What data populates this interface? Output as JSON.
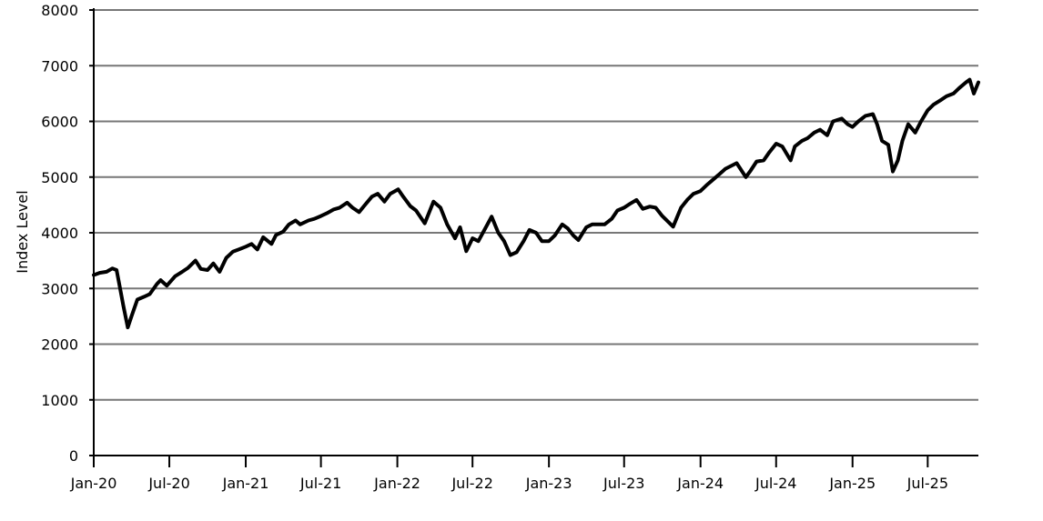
{
  "chart_data": {
    "type": "line",
    "title": "",
    "xlabel": "",
    "ylabel": "Index Level",
    "ylim": [
      0,
      8000
    ],
    "yticks": [
      0,
      1000,
      2000,
      3000,
      4000,
      5000,
      6000,
      7000,
      8000
    ],
    "xlim": [
      "2020-01-01",
      "2025-10-31"
    ],
    "xticks": [
      {
        "date": "2020-01-01",
        "label": "Jan-20"
      },
      {
        "date": "2020-07-01",
        "label": "Jul-20"
      },
      {
        "date": "2021-01-01",
        "label": "Jan-21"
      },
      {
        "date": "2021-07-01",
        "label": "Jul-21"
      },
      {
        "date": "2022-01-01",
        "label": "Jan-22"
      },
      {
        "date": "2022-07-01",
        "label": "Jul-22"
      },
      {
        "date": "2023-01-01",
        "label": "Jan-23"
      },
      {
        "date": "2023-07-01",
        "label": "Jul-23"
      },
      {
        "date": "2024-01-01",
        "label": "Jan-24"
      },
      {
        "date": "2024-07-01",
        "label": "Jul-24"
      },
      {
        "date": "2025-01-01",
        "label": "Jan-25"
      },
      {
        "date": "2025-07-01",
        "label": "Jul-25"
      }
    ],
    "grid": "horizontal",
    "line_color": "#000000",
    "grid_color": "#777777",
    "series": [
      {
        "x": [
          "2020-01-01",
          "2020-01-15",
          "2020-02-01",
          "2020-02-15",
          "2020-02-25",
          "2020-03-05",
          "2020-03-12",
          "2020-03-23",
          "2020-04-01",
          "2020-04-15",
          "2020-05-01",
          "2020-05-15",
          "2020-06-01",
          "2020-06-10",
          "2020-06-25",
          "2020-07-15",
          "2020-08-01",
          "2020-08-15",
          "2020-09-02",
          "2020-09-15",
          "2020-10-01",
          "2020-10-15",
          "2020-10-30",
          "2020-11-15",
          "2020-12-01",
          "2020-12-15",
          "2021-01-01",
          "2021-01-15",
          "2021-01-29",
          "2021-02-12",
          "2021-03-04",
          "2021-03-15",
          "2021-04-01",
          "2021-04-15",
          "2021-05-01",
          "2021-05-12",
          "2021-06-01",
          "2021-06-15",
          "2021-07-01",
          "2021-07-15",
          "2021-08-01",
          "2021-08-15",
          "2021-09-02",
          "2021-09-15",
          "2021-10-01",
          "2021-10-15",
          "2021-11-01",
          "2021-11-15",
          "2021-12-01",
          "2021-12-15",
          "2022-01-03",
          "2022-01-15",
          "2022-02-01",
          "2022-02-15",
          "2022-03-08",
          "2022-03-29",
          "2022-04-15",
          "2022-05-01",
          "2022-05-20",
          "2022-06-01",
          "2022-06-16",
          "2022-07-01",
          "2022-07-15",
          "2022-08-16",
          "2022-09-01",
          "2022-09-15",
          "2022-09-30",
          "2022-10-15",
          "2022-11-01",
          "2022-11-15",
          "2022-12-01",
          "2022-12-15",
          "2023-01-01",
          "2023-01-15",
          "2023-02-02",
          "2023-02-15",
          "2023-03-01",
          "2023-03-13",
          "2023-04-01",
          "2023-04-15",
          "2023-05-01",
          "2023-05-15",
          "2023-06-01",
          "2023-06-15",
          "2023-07-01",
          "2023-07-15",
          "2023-07-31",
          "2023-08-15",
          "2023-09-01",
          "2023-09-15",
          "2023-10-01",
          "2023-10-27",
          "2023-11-15",
          "2023-12-01",
          "2023-12-15",
          "2024-01-01",
          "2024-01-15",
          "2024-02-01",
          "2024-02-15",
          "2024-03-01",
          "2024-03-28",
          "2024-04-19",
          "2024-05-01",
          "2024-05-15",
          "2024-06-01",
          "2024-06-15",
          "2024-07-01",
          "2024-07-16",
          "2024-08-05",
          "2024-08-15",
          "2024-09-01",
          "2024-09-15",
          "2024-10-01",
          "2024-10-15",
          "2024-11-01",
          "2024-11-15",
          "2024-12-06",
          "2024-12-20",
          "2025-01-01",
          "2025-01-15",
          "2025-02-01",
          "2025-02-19",
          "2025-03-01",
          "2025-03-13",
          "2025-03-28",
          "2025-04-08",
          "2025-04-20",
          "2025-05-01",
          "2025-05-15",
          "2025-06-01",
          "2025-06-15",
          "2025-07-01",
          "2025-07-15",
          "2025-08-01",
          "2025-08-15",
          "2025-09-01",
          "2025-09-15",
          "2025-10-01",
          "2025-10-10",
          "2025-10-20",
          "2025-10-31"
        ],
        "values": [
          3240,
          3280,
          3300,
          3360,
          3330,
          2980,
          2700,
          2300,
          2500,
          2800,
          2850,
          2900,
          3080,
          3150,
          3050,
          3220,
          3300,
          3370,
          3500,
          3350,
          3330,
          3450,
          3300,
          3550,
          3660,
          3700,
          3750,
          3800,
          3700,
          3920,
          3800,
          3960,
          4020,
          4150,
          4220,
          4150,
          4220,
          4250,
          4300,
          4350,
          4420,
          4450,
          4540,
          4450,
          4370,
          4500,
          4650,
          4700,
          4560,
          4700,
          4780,
          4650,
          4480,
          4400,
          4170,
          4560,
          4450,
          4150,
          3900,
          4100,
          3670,
          3900,
          3850,
          4290,
          4000,
          3850,
          3600,
          3650,
          3850,
          4050,
          4000,
          3850,
          3850,
          3950,
          4150,
          4080,
          3950,
          3870,
          4100,
          4150,
          4150,
          4150,
          4250,
          4400,
          4450,
          4520,
          4590,
          4430,
          4470,
          4450,
          4300,
          4110,
          4450,
          4600,
          4700,
          4750,
          4850,
          4960,
          5050,
          5150,
          5250,
          5000,
          5120,
          5280,
          5300,
          5450,
          5600,
          5550,
          5300,
          5550,
          5650,
          5700,
          5800,
          5850,
          5750,
          6000,
          6050,
          5950,
          5900,
          6000,
          6100,
          6130,
          5950,
          5650,
          5580,
          5100,
          5300,
          5650,
          5950,
          5800,
          6000,
          6200,
          6300,
          6380,
          6450,
          6500,
          6600,
          6700,
          6750,
          6500,
          6700
        ]
      }
    ]
  }
}
